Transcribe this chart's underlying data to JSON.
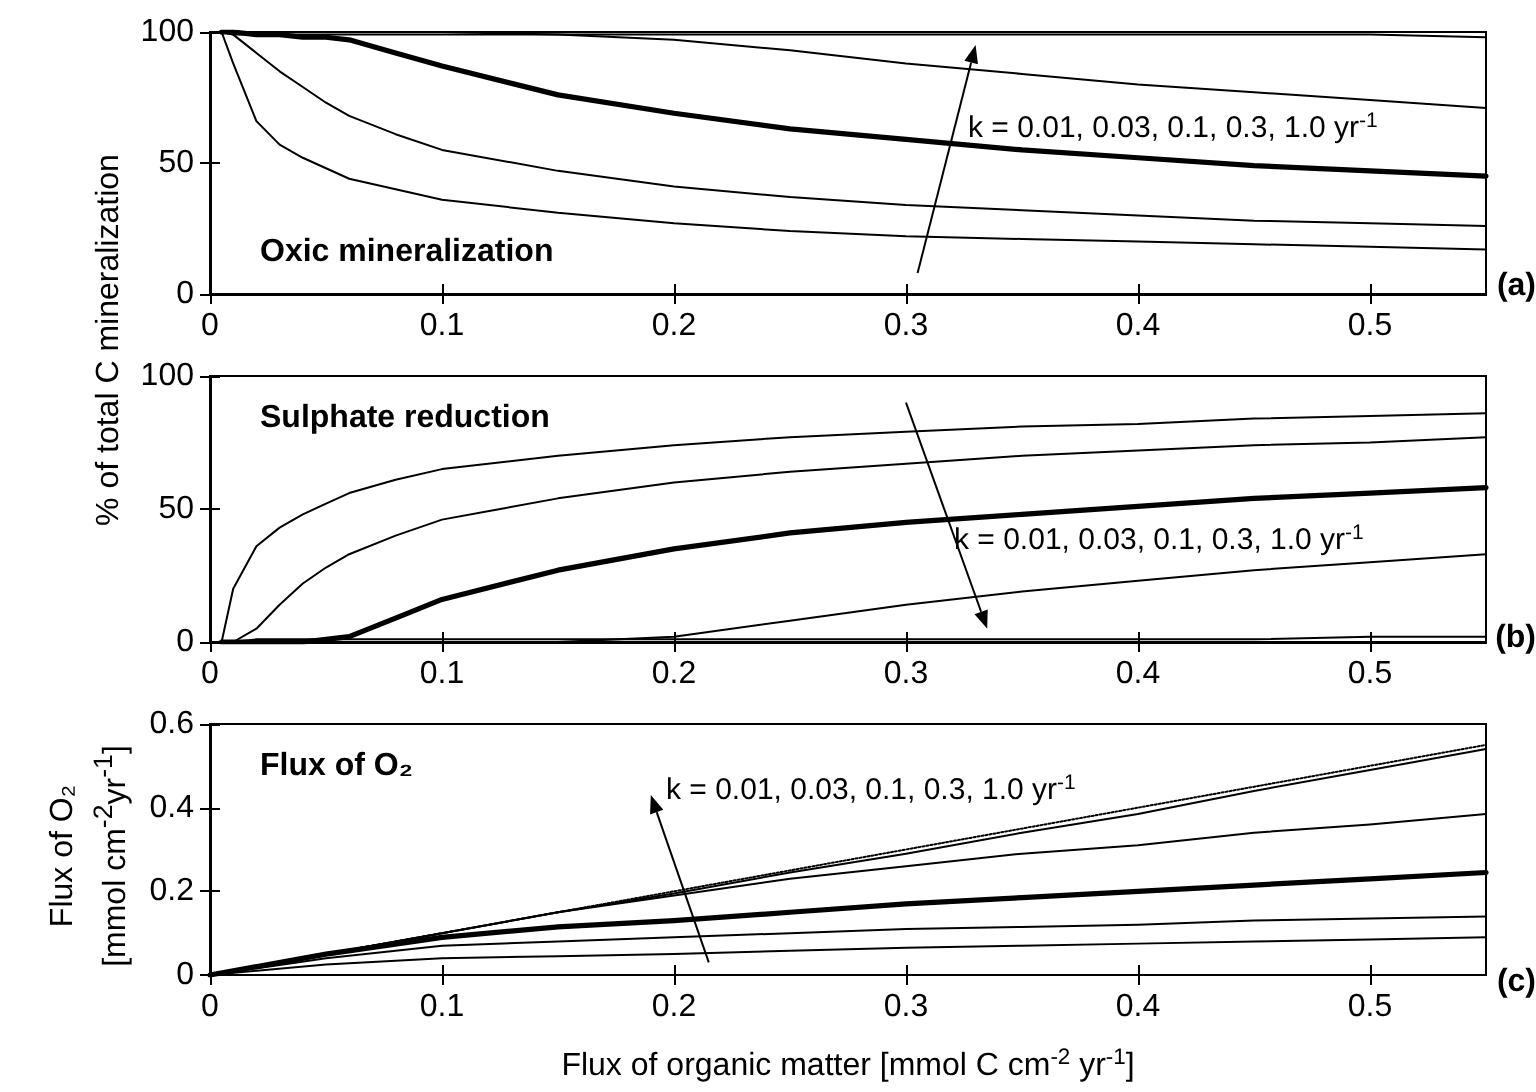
{
  "chart_data": [
    {
      "type": "line",
      "title": "Oxic mineralization",
      "ylabel": "% of total C mineralization",
      "x": [
        0.005,
        0.01,
        0.02,
        0.03,
        0.04,
        0.05,
        0.06,
        0.08,
        0.1,
        0.15,
        0.2,
        0.25,
        0.3,
        0.35,
        0.4,
        0.45,
        0.5,
        0.55
      ],
      "series": [
        {
          "color": "#000000",
          "values": [
            100,
            88,
            66,
            57,
            52,
            48,
            44,
            40,
            36,
            31,
            27,
            24,
            22,
            21,
            20,
            19,
            18,
            17
          ]
        },
        {
          "color": "#000000",
          "values": [
            100,
            99,
            92,
            85,
            79,
            73,
            68,
            61,
            55,
            47,
            41,
            37,
            34,
            32,
            30,
            28,
            27,
            26
          ]
        },
        {
          "color": "#000000",
          "values": [
            100,
            100,
            99,
            99,
            98,
            98,
            97,
            92,
            87,
            76,
            69,
            63,
            59,
            55,
            52,
            49,
            47,
            45
          ]
        },
        {
          "color": "#000000",
          "values": [
            100,
            100,
            100,
            100,
            100,
            100,
            100,
            100,
            100,
            99,
            97,
            93,
            88,
            84,
            80,
            77,
            74,
            71
          ]
        },
        {
          "color": "#000000",
          "values": [
            100,
            99,
            99,
            99,
            99,
            99,
            99,
            99,
            99,
            99,
            99,
            99,
            99,
            99,
            99,
            99,
            99,
            98
          ]
        }
      ],
      "xlim": [
        0,
        0.55
      ],
      "xticks": [
        0,
        0.1,
        0.2,
        0.3,
        0.4,
        0.5
      ],
      "ylim": [
        0,
        100
      ],
      "yticks": [
        0,
        50,
        100
      ],
      "grid": false,
      "marker": "none",
      "line_style": "solid",
      "annotations": [
        "k = 0.01, 0.03, 0.1, 0.3, 1.0 yr$^{-1}$",
        "(a)"
      ]
    },
    {
      "type": "line",
      "title": "Sulphate reduction",
      "x": [
        0.005,
        0.01,
        0.02,
        0.03,
        0.04,
        0.05,
        0.06,
        0.08,
        0.1,
        0.15,
        0.2,
        0.25,
        0.3,
        0.35,
        0.4,
        0.45,
        0.5,
        0.55
      ],
      "series": [
        {
          "color": "#000000",
          "values": [
            0,
            20,
            36,
            43,
            48,
            52,
            56,
            61,
            65,
            70,
            74,
            77,
            79,
            81,
            82,
            84,
            85,
            86
          ]
        },
        {
          "color": "#000000",
          "values": [
            0,
            0,
            5,
            14,
            22,
            28,
            33,
            40,
            46,
            54,
            60,
            64,
            67,
            70,
            72,
            74,
            75,
            77
          ]
        },
        {
          "color": "#000000",
          "values": [
            0,
            0,
            0,
            0,
            0,
            1,
            2,
            9,
            16,
            27,
            35,
            41,
            45,
            48,
            51,
            54,
            56,
            58
          ]
        },
        {
          "color": "#000000",
          "values": [
            0,
            0,
            0,
            0,
            0,
            0,
            0,
            0,
            0,
            0,
            2,
            8,
            14,
            19,
            23,
            27,
            30,
            33
          ]
        },
        {
          "color": "#000000",
          "values": [
            0,
            0,
            1,
            1,
            1,
            1,
            1,
            1,
            1,
            1,
            1,
            1,
            1,
            1,
            1,
            1,
            2,
            2
          ]
        }
      ],
      "xlim": [
        0,
        0.55
      ],
      "xticks": [
        0,
        0.1,
        0.2,
        0.3,
        0.4,
        0.5
      ],
      "ylim": [
        0,
        100
      ],
      "yticks": [
        0,
        50,
        100
      ],
      "grid": false,
      "marker": "none",
      "line_style": "solid",
      "annotations": [
        "k = 0.01, 0.03, 0.1, 0.3, 1.0 yr$^{-1}$",
        "(b)"
      ]
    },
    {
      "type": "line",
      "title": "Flux of O₂",
      "ylabel": "Flux of O₂\n[mmol cm$^{-2}$yr$^{-1}$]",
      "xlabel": "Flux of organic matter [mmol C cm$^{-2}$ yr$^{-1}$]",
      "x": [
        0,
        0.05,
        0.1,
        0.15,
        0.2,
        0.25,
        0.3,
        0.35,
        0.4,
        0.45,
        0.5,
        0.55
      ],
      "series": [
        {
          "color": "#000000",
          "values": [
            0,
            0.05,
            0.1,
            0.15,
            0.195,
            0.245,
            0.29,
            0.34,
            0.385,
            0.44,
            0.49,
            0.54
          ]
        },
        {
          "color": "#000000",
          "values": [
            0,
            0.05,
            0.1,
            0.15,
            0.19,
            0.23,
            0.26,
            0.29,
            0.31,
            0.34,
            0.36,
            0.385
          ]
        },
        {
          "color": "#000000",
          "values": [
            0,
            0.05,
            0.09,
            0.115,
            0.13,
            0.15,
            0.17,
            0.185,
            0.2,
            0.215,
            0.23,
            0.245
          ]
        },
        {
          "color": "#000000",
          "values": [
            0,
            0.04,
            0.07,
            0.08,
            0.09,
            0.1,
            0.11,
            0.115,
            0.12,
            0.13,
            0.135,
            0.14
          ]
        },
        {
          "color": "#000000",
          "values": [
            0,
            0.025,
            0.04,
            0.045,
            0.05,
            0.058,
            0.065,
            0.07,
            0.075,
            0.08,
            0.085,
            0.09
          ]
        },
        {
          "color": "#000000",
          "x": [
            0,
            0.55
          ],
          "values": [
            0,
            0.55
          ],
          "line_style": "dotted"
        }
      ],
      "xlim": [
        0,
        0.55
      ],
      "xticks": [
        0,
        0.1,
        0.2,
        0.3,
        0.4,
        0.5
      ],
      "ylim": [
        0,
        0.6
      ],
      "yticks": [
        0,
        0.2,
        0.4,
        0.6
      ],
      "grid": false,
      "marker": "none",
      "line_style": "solid",
      "annotations": [
        "k = 0.01, 0.03, 0.1, 0.3, 1.0 yr$^{-1}$",
        "(c)"
      ]
    }
  ]
}
